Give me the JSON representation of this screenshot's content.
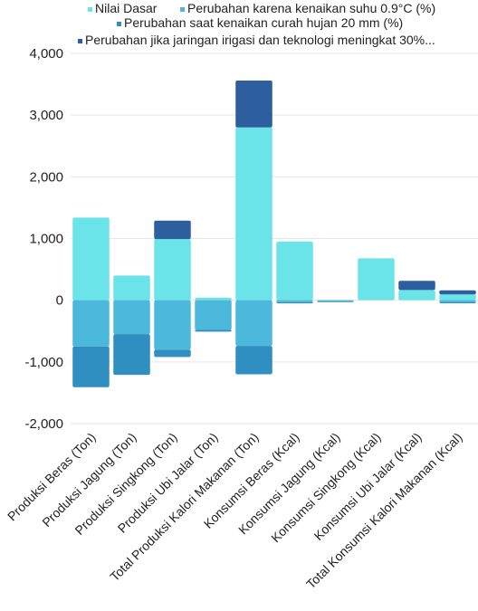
{
  "chart_data": {
    "type": "bar",
    "stacked": true,
    "title": "",
    "xlabel": "",
    "ylabel": "",
    "ylim": [
      -2000,
      4000
    ],
    "yticks": [
      -2000,
      -1000,
      0,
      1000,
      2000,
      3000,
      4000
    ],
    "ytick_labels": [
      "-2,000",
      "-1,000",
      "0",
      "1,000",
      "2,000",
      "3,000",
      "4,000"
    ],
    "grid": true,
    "legend_position": "top",
    "categories": [
      "Produksi Beras (Ton)",
      "Produksi Jagung (Ton)",
      "Produksi Singkong (Ton)",
      "Produksi Ubi Jalar (Ton)",
      "Total Produksi Kalori Makanan (Ton)",
      "Konsumsi Beras (Kcal)",
      "Konsumsi Jagung (Kcal)",
      "Konsumsi Singkong (Kcal)",
      "Konsumsi Ubi Jalar (Kcal)",
      "Total Konsumsi Kalori Makanan (Kcal)"
    ],
    "series": [
      {
        "name": "Nilai Dasar",
        "color": "#6ae4e8",
        "values": [
          1340,
          400,
          990,
          40,
          2800,
          950,
          0,
          680,
          165,
          95
        ]
      },
      {
        "name": "Perubahan karena kenaikan suhu 0.9°C (%)",
        "color": "#4cb9dc",
        "values": [
          -750,
          -550,
          -800,
          -480,
          -740,
          -30,
          -15,
          0,
          0,
          -35
        ]
      },
      {
        "name": "Perubahan saat kenaikan curah hujan 20 mm (%)",
        "color": "#2e8fc0",
        "values": [
          -660,
          -660,
          -120,
          -30,
          -460,
          -20,
          -10,
          0,
          0,
          -5
        ]
      },
      {
        "name": "Perubahan jika jaringan irigasi dan teknologi meningkat 30%...",
        "color": "#2d5f9e",
        "values": [
          0,
          0,
          300,
          0,
          760,
          0,
          0,
          0,
          150,
          65
        ]
      }
    ]
  }
}
